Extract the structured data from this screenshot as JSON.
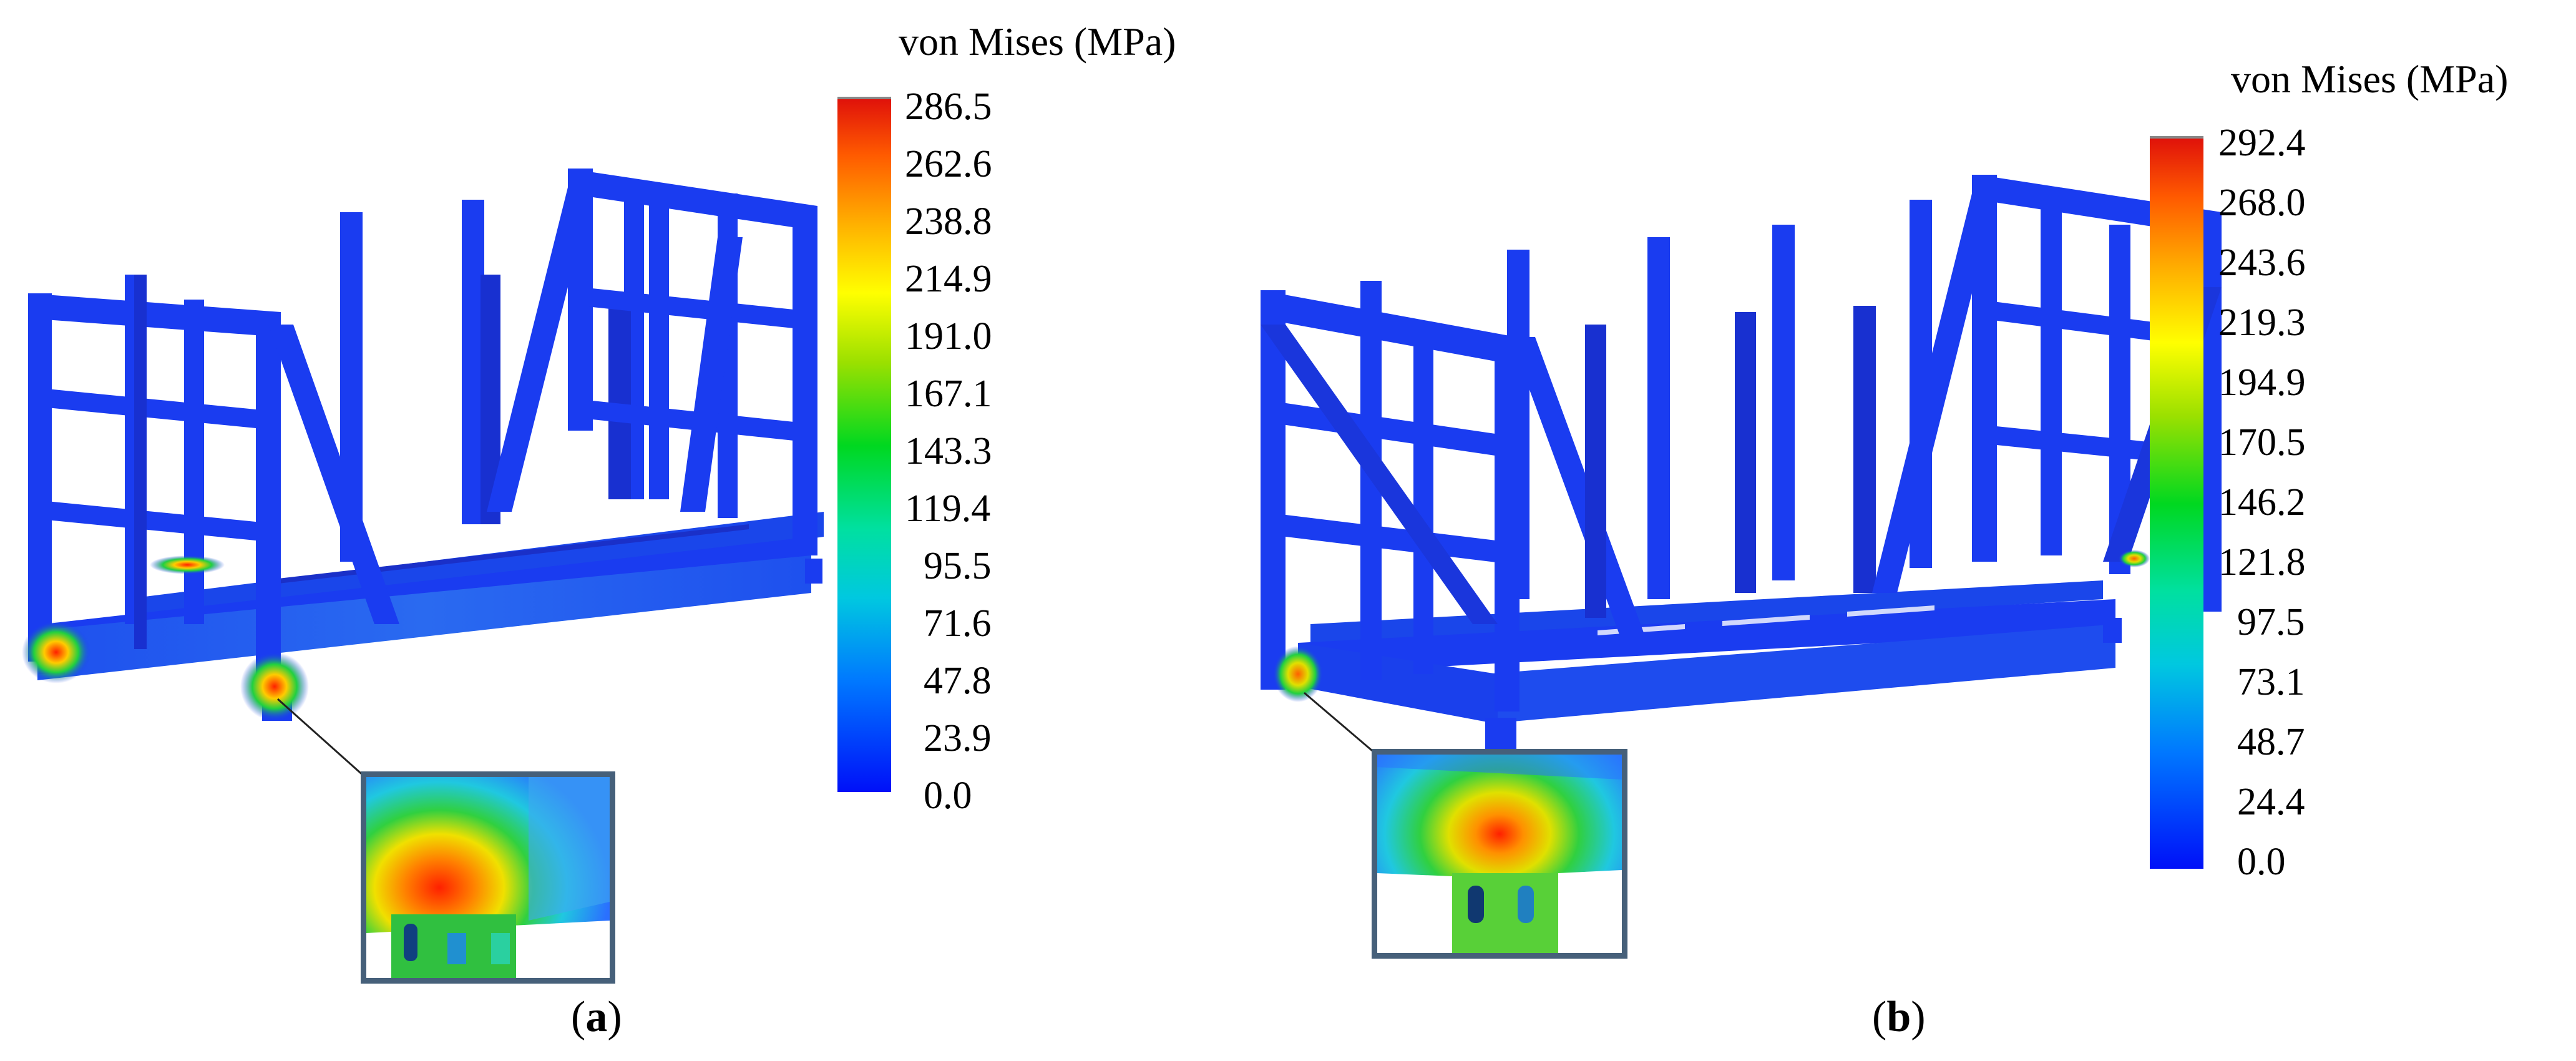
{
  "legend_title": "von Mises (MPa)",
  "panels": [
    {
      "caption_open": "(",
      "caption_letter": "a",
      "caption_close": ")",
      "ticks": [
        "286.5",
        "262.6",
        "238.8",
        "214.9",
        "191.0",
        "167.1",
        "143.3",
        "119.4",
        "95.5",
        "71.6",
        "47.8",
        "23.9",
        "0.0"
      ]
    },
    {
      "caption_open": "(",
      "caption_letter": "b",
      "caption_close": ")",
      "ticks": [
        "292.4",
        "268.0",
        "243.6",
        "219.3",
        "194.9",
        "170.5",
        "146.2",
        "121.8",
        "97.5",
        "73.1",
        "48.7",
        "24.4",
        "0.0"
      ]
    }
  ],
  "colors": {
    "structure": "#1a3cf0",
    "structure_shadow": "#1028c8",
    "inset_border": "#46607a",
    "hotspot": "#e82810"
  }
}
